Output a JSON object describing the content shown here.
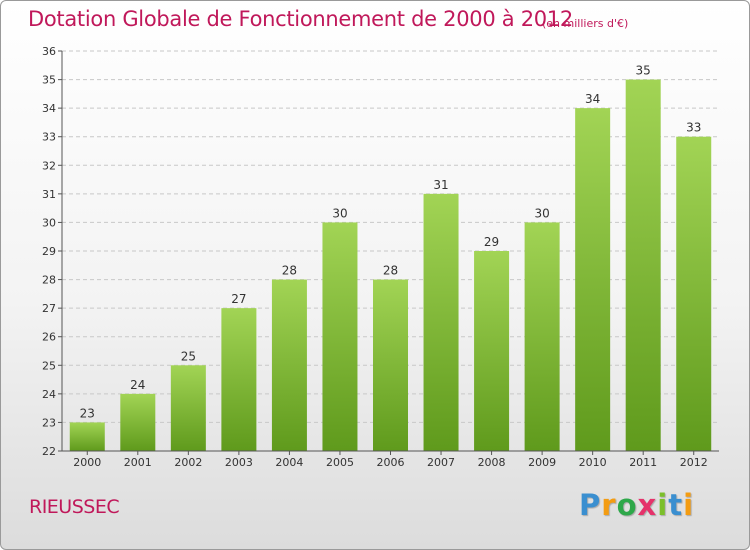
{
  "title": "Dotation Globale de Fonctionnement de 2000 à 2012",
  "subtitle": "(en milliers d'€)",
  "commune": "RIEUSSEC",
  "logo": {
    "letters": [
      "P",
      "r",
      "o",
      "x",
      "i",
      "t",
      "i"
    ],
    "colors": [
      "#3a8fd0",
      "#f39c12",
      "#2ea84a",
      "#e5326a",
      "#7bbf2a",
      "#3a8fd0",
      "#f39c12"
    ]
  },
  "colors": {
    "title": "#c0185a",
    "bar_top": "#a2d455",
    "bar_bottom": "#5f9a1c",
    "axis": "#555555",
    "grid": "#c8c8c8"
  },
  "chart_data": {
    "type": "bar",
    "categories": [
      "2000",
      "2001",
      "2002",
      "2003",
      "2004",
      "2005",
      "2006",
      "2007",
      "2008",
      "2009",
      "2010",
      "2011",
      "2012"
    ],
    "values": [
      23,
      24,
      25,
      27,
      28,
      30,
      28,
      31,
      29,
      30,
      34,
      35,
      33
    ],
    "title": "Dotation Globale de Fonctionnement de 2000 à 2012",
    "subtitle": "(en milliers d'€)",
    "ylim": [
      22,
      36
    ],
    "yticks": [
      22,
      23,
      24,
      25,
      26,
      27,
      28,
      29,
      30,
      31,
      32,
      33,
      34,
      35,
      36
    ],
    "grid": true,
    "data_labels": true
  }
}
